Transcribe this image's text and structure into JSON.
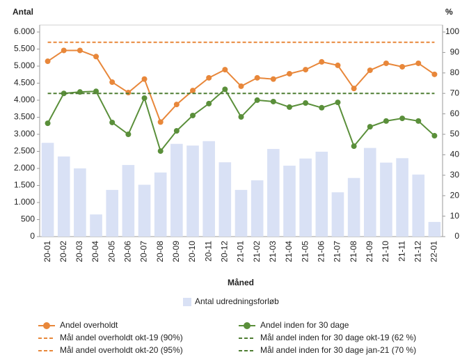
{
  "chart_data": {
    "type": "combo",
    "y_label": "Antal",
    "y2_label": "%",
    "x_label": "Måned",
    "categories": [
      "20-01",
      "20-02",
      "20-03",
      "20-04",
      "20-05",
      "20-06",
      "20-07",
      "20-08",
      "20-09",
      "20-10",
      "20-11",
      "20-12",
      "21-01",
      "21-02",
      "21-03",
      "21-04",
      "21-05",
      "21-06",
      "21-07",
      "21-08",
      "21-09",
      "21-10",
      "21-11",
      "21-12",
      "22-01"
    ],
    "ylim": [
      0,
      6000
    ],
    "yticks": [
      0,
      500,
      {
        "value": 1000,
        "label": "1.000"
      },
      {
        "value": 1500,
        "label": "1.500"
      },
      {
        "value": 2000,
        "label": "2.000"
      },
      {
        "value": 2500,
        "label": "2.500"
      },
      {
        "value": 3000,
        "label": "3.000"
      },
      {
        "value": 3500,
        "label": "3.500"
      },
      {
        "value": 4000,
        "label": "4.000"
      },
      {
        "value": 4500,
        "label": "4.500"
      },
      {
        "value": 5000,
        "label": "5.000"
      },
      {
        "value": 5500,
        "label": "5.500"
      },
      {
        "value": 6000,
        "label": "6.000"
      }
    ],
    "y2lim": [
      0,
      100
    ],
    "y2ticks": [
      0,
      10,
      20,
      30,
      40,
      50,
      60,
      70,
      80,
      90,
      100
    ],
    "series": [
      {
        "name": "Antal udredningsforløb",
        "type": "bar",
        "color": "#d9e1f5",
        "values": [
          2750,
          2350,
          2000,
          650,
          1370,
          2100,
          1520,
          1880,
          2720,
          2670,
          2800,
          2180,
          1370,
          1650,
          2570,
          2080,
          2290,
          2490,
          1300,
          1720,
          2600,
          2170,
          2300,
          1820,
          430
        ]
      },
      {
        "name": "Andel overholdt",
        "type": "line",
        "axis": "y2",
        "color": "#e8873a",
        "markers": true,
        "dashed": false,
        "values": [
          85.7,
          91,
          91,
          88,
          75.5,
          70.4,
          77,
          56,
          64.6,
          71.4,
          77.6,
          81.6,
          73.5,
          77.6,
          77,
          79.6,
          81.6,
          85.4,
          83.7,
          72.4,
          81.3,
          84.7,
          83,
          84.7,
          79.3
        ]
      },
      {
        "name": "Andel inden for 30 dage",
        "type": "line",
        "axis": "y2",
        "color": "#5a8f3a",
        "markers": true,
        "dashed": false,
        "values": [
          55.4,
          70,
          70.7,
          71,
          55.8,
          50,
          67.7,
          41.8,
          51.7,
          59.2,
          65,
          72,
          58.5,
          66.7,
          66,
          63.3,
          65.3,
          63,
          65.6,
          44.2,
          53.7,
          56.5,
          57.8,
          56.5,
          49.3
        ]
      },
      {
        "name": "Mål andel overholdt okt-19 (90%)",
        "type": "line",
        "axis": "y2",
        "color": "#e8873a",
        "markers": false,
        "dashed": true,
        "values": [
          null,
          null,
          null,
          null,
          null,
          null,
          null,
          null,
          null,
          null,
          null,
          null,
          null,
          null,
          null,
          null,
          null,
          null,
          null,
          null,
          null,
          null,
          null,
          null,
          null
        ]
      },
      {
        "name": "Mål andel inden for 30 dage okt-19 (62 %)",
        "type": "line",
        "axis": "y2",
        "color": "#4e7d32",
        "markers": false,
        "dashed": true,
        "values": [
          null,
          null,
          null,
          null,
          null,
          null,
          null,
          null,
          null,
          null,
          null,
          null,
          null,
          null,
          null,
          null,
          null,
          null,
          null,
          null,
          null,
          null,
          null,
          null,
          null
        ]
      },
      {
        "name": "Mål andel overholdt okt-20 (95%)",
        "type": "line",
        "axis": "y2",
        "color": "#e8873a",
        "markers": false,
        "dashed": true,
        "values": [
          95,
          95,
          95,
          95,
          95,
          95,
          95,
          95,
          95,
          95,
          95,
          95,
          95,
          95,
          95,
          95,
          95,
          95,
          95,
          95,
          95,
          95,
          95,
          95,
          95
        ]
      },
      {
        "name": "Mål andel inden for 30 dage jan-21 (70 %)",
        "type": "line",
        "axis": "y2",
        "color": "#4e7d32",
        "markers": false,
        "dashed": true,
        "values": [
          70,
          70,
          70,
          70,
          70,
          70,
          70,
          70,
          70,
          70,
          70,
          70,
          70,
          70,
          70,
          70,
          70,
          70,
          70,
          70,
          70,
          70,
          70,
          70,
          70
        ]
      }
    ]
  }
}
